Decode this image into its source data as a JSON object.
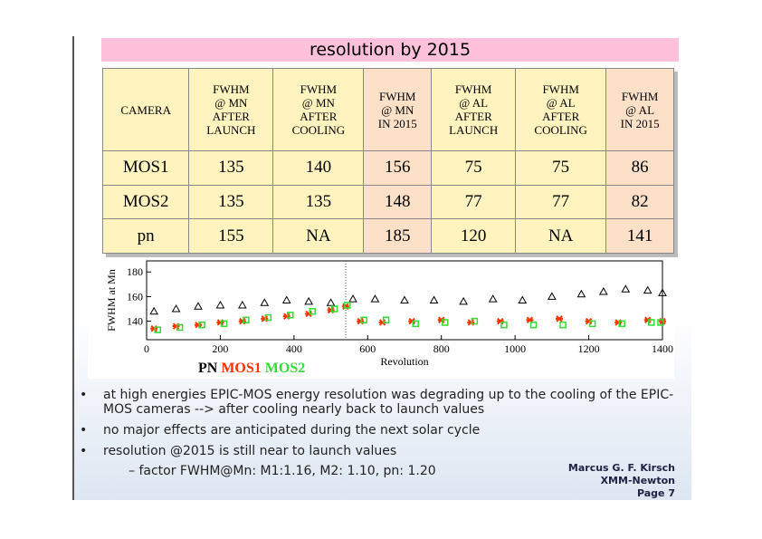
{
  "header": {
    "title": "resolution by 2015"
  },
  "table": {
    "columns": [
      "CAMERA",
      "FWHM\n@ MN\nAFTER\nLAUNCH",
      "FWHM\n@ MN\nAFTER\nCOOLING",
      "FWHM\n@ MN\nIN 2015",
      "FWHM\n@ AL\nAFTER\nLAUNCH",
      "FWHM\n@ AL\nAFTER\nCOOLING",
      "FWHM\n@ AL\nIN 2015"
    ],
    "rows": [
      [
        "MOS1",
        "135",
        "140",
        "156",
        "75",
        "75",
        "86"
      ],
      [
        "MOS2",
        "135",
        "135",
        "148",
        "77",
        "77",
        "82"
      ],
      [
        "pn",
        "155",
        "NA",
        "185",
        "120",
        "NA",
        "141"
      ]
    ]
  },
  "chart_data": {
    "type": "scatter",
    "x_label": "Revolution",
    "y_label": "FWHM at Mn",
    "xlim": [
      0,
      1400
    ],
    "xticks": [
      0,
      200,
      400,
      600,
      800,
      1000,
      1200,
      1400
    ],
    "ylim": [
      125,
      189
    ],
    "yticks": [
      140,
      160,
      180
    ],
    "series": [
      {
        "name": "PN",
        "color": "#000000",
        "marker": "triangle",
        "x": [
          20,
          80,
          140,
          200,
          260,
          320,
          380,
          440,
          500,
          560,
          620,
          700,
          780,
          860,
          940,
          1020,
          1100,
          1180,
          1240,
          1300,
          1360,
          1400
        ],
        "values": [
          148,
          150,
          152,
          153,
          153,
          155,
          157,
          156,
          155,
          158,
          158,
          157,
          157,
          156,
          158,
          157,
          160,
          162,
          164,
          166,
          165,
          163
        ]
      },
      {
        "name": "MOS1",
        "color": "#ff3300",
        "marker": "cross",
        "x": [
          20,
          80,
          140,
          200,
          260,
          320,
          380,
          440,
          500,
          540,
          580,
          640,
          720,
          800,
          880,
          960,
          1040,
          1120,
          1200,
          1280,
          1360,
          1400
        ],
        "values": [
          134,
          136,
          137,
          139,
          140,
          142,
          144,
          146,
          149,
          152,
          140,
          139,
          140,
          141,
          139,
          140,
          141,
          142,
          140,
          139,
          141,
          140
        ]
      },
      {
        "name": "MOS2",
        "color": "#33dd33",
        "marker": "square",
        "x": [
          30,
          90,
          150,
          210,
          270,
          330,
          390,
          450,
          510,
          545,
          590,
          650,
          730,
          810,
          890,
          970,
          1050,
          1130,
          1210,
          1290,
          1370,
          1395
        ],
        "values": [
          133,
          135,
          137,
          138,
          141,
          143,
          145,
          148,
          150,
          153,
          141,
          141,
          138,
          139,
          140,
          137,
          137,
          137,
          138,
          138,
          139,
          139
        ]
      }
    ]
  },
  "bullets": [
    {
      "text": "at high energies EPIC-MOS energy resolution was degrading up to the cooling of the EPIC-MOS cameras --> after cooling nearly back to launch values"
    },
    {
      "text": "no major effects are anticipated during the next solar cycle"
    },
    {
      "text": "resolution @2015 is still near to launch values",
      "sub": [
        "factor FWHM@Mn: M1:1.16, M2: 1.10, pn: 1.20"
      ]
    }
  ],
  "footer": {
    "author": "Marcus G. F. Kirsch",
    "mission": "XMM-Newton",
    "page": "Page  7"
  }
}
